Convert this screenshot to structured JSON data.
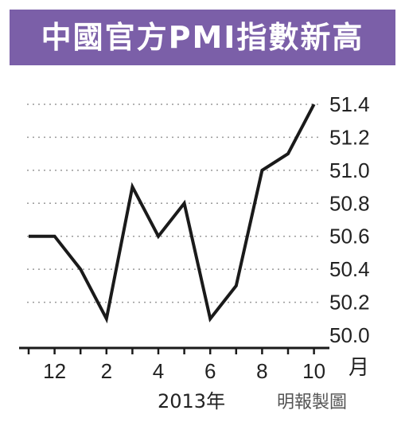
{
  "chart_data": {
    "type": "line",
    "title": "中國官方PMI指數新高",
    "x_ticks": [
      "12",
      "2",
      "4",
      "6",
      "8",
      "10"
    ],
    "x_unit": "月",
    "year_label": "2013年",
    "source": "明報製圖",
    "y_ticks": [
      "51.4",
      "51.2",
      "51.0",
      "50.8",
      "50.6",
      "50.4",
      "50.2",
      "50.0"
    ],
    "ylim": [
      50.0,
      51.4
    ],
    "grid": true,
    "series": [
      {
        "x": [
          "2012-11",
          "2012-12",
          "2013-01",
          "2013-02",
          "2013-03",
          "2013-04",
          "2013-05",
          "2013-06",
          "2013-07",
          "2013-08",
          "2013-09",
          "2013-10"
        ],
        "values": [
          50.6,
          50.6,
          50.4,
          50.1,
          50.9,
          50.6,
          50.8,
          50.1,
          50.3,
          51.0,
          51.1,
          51.4
        ]
      }
    ],
    "colors": {
      "line": "#1a1a1a",
      "grid": "#9a9a9a",
      "axis": "#1a1a1a",
      "title_bg": "#7b5fa8"
    }
  }
}
